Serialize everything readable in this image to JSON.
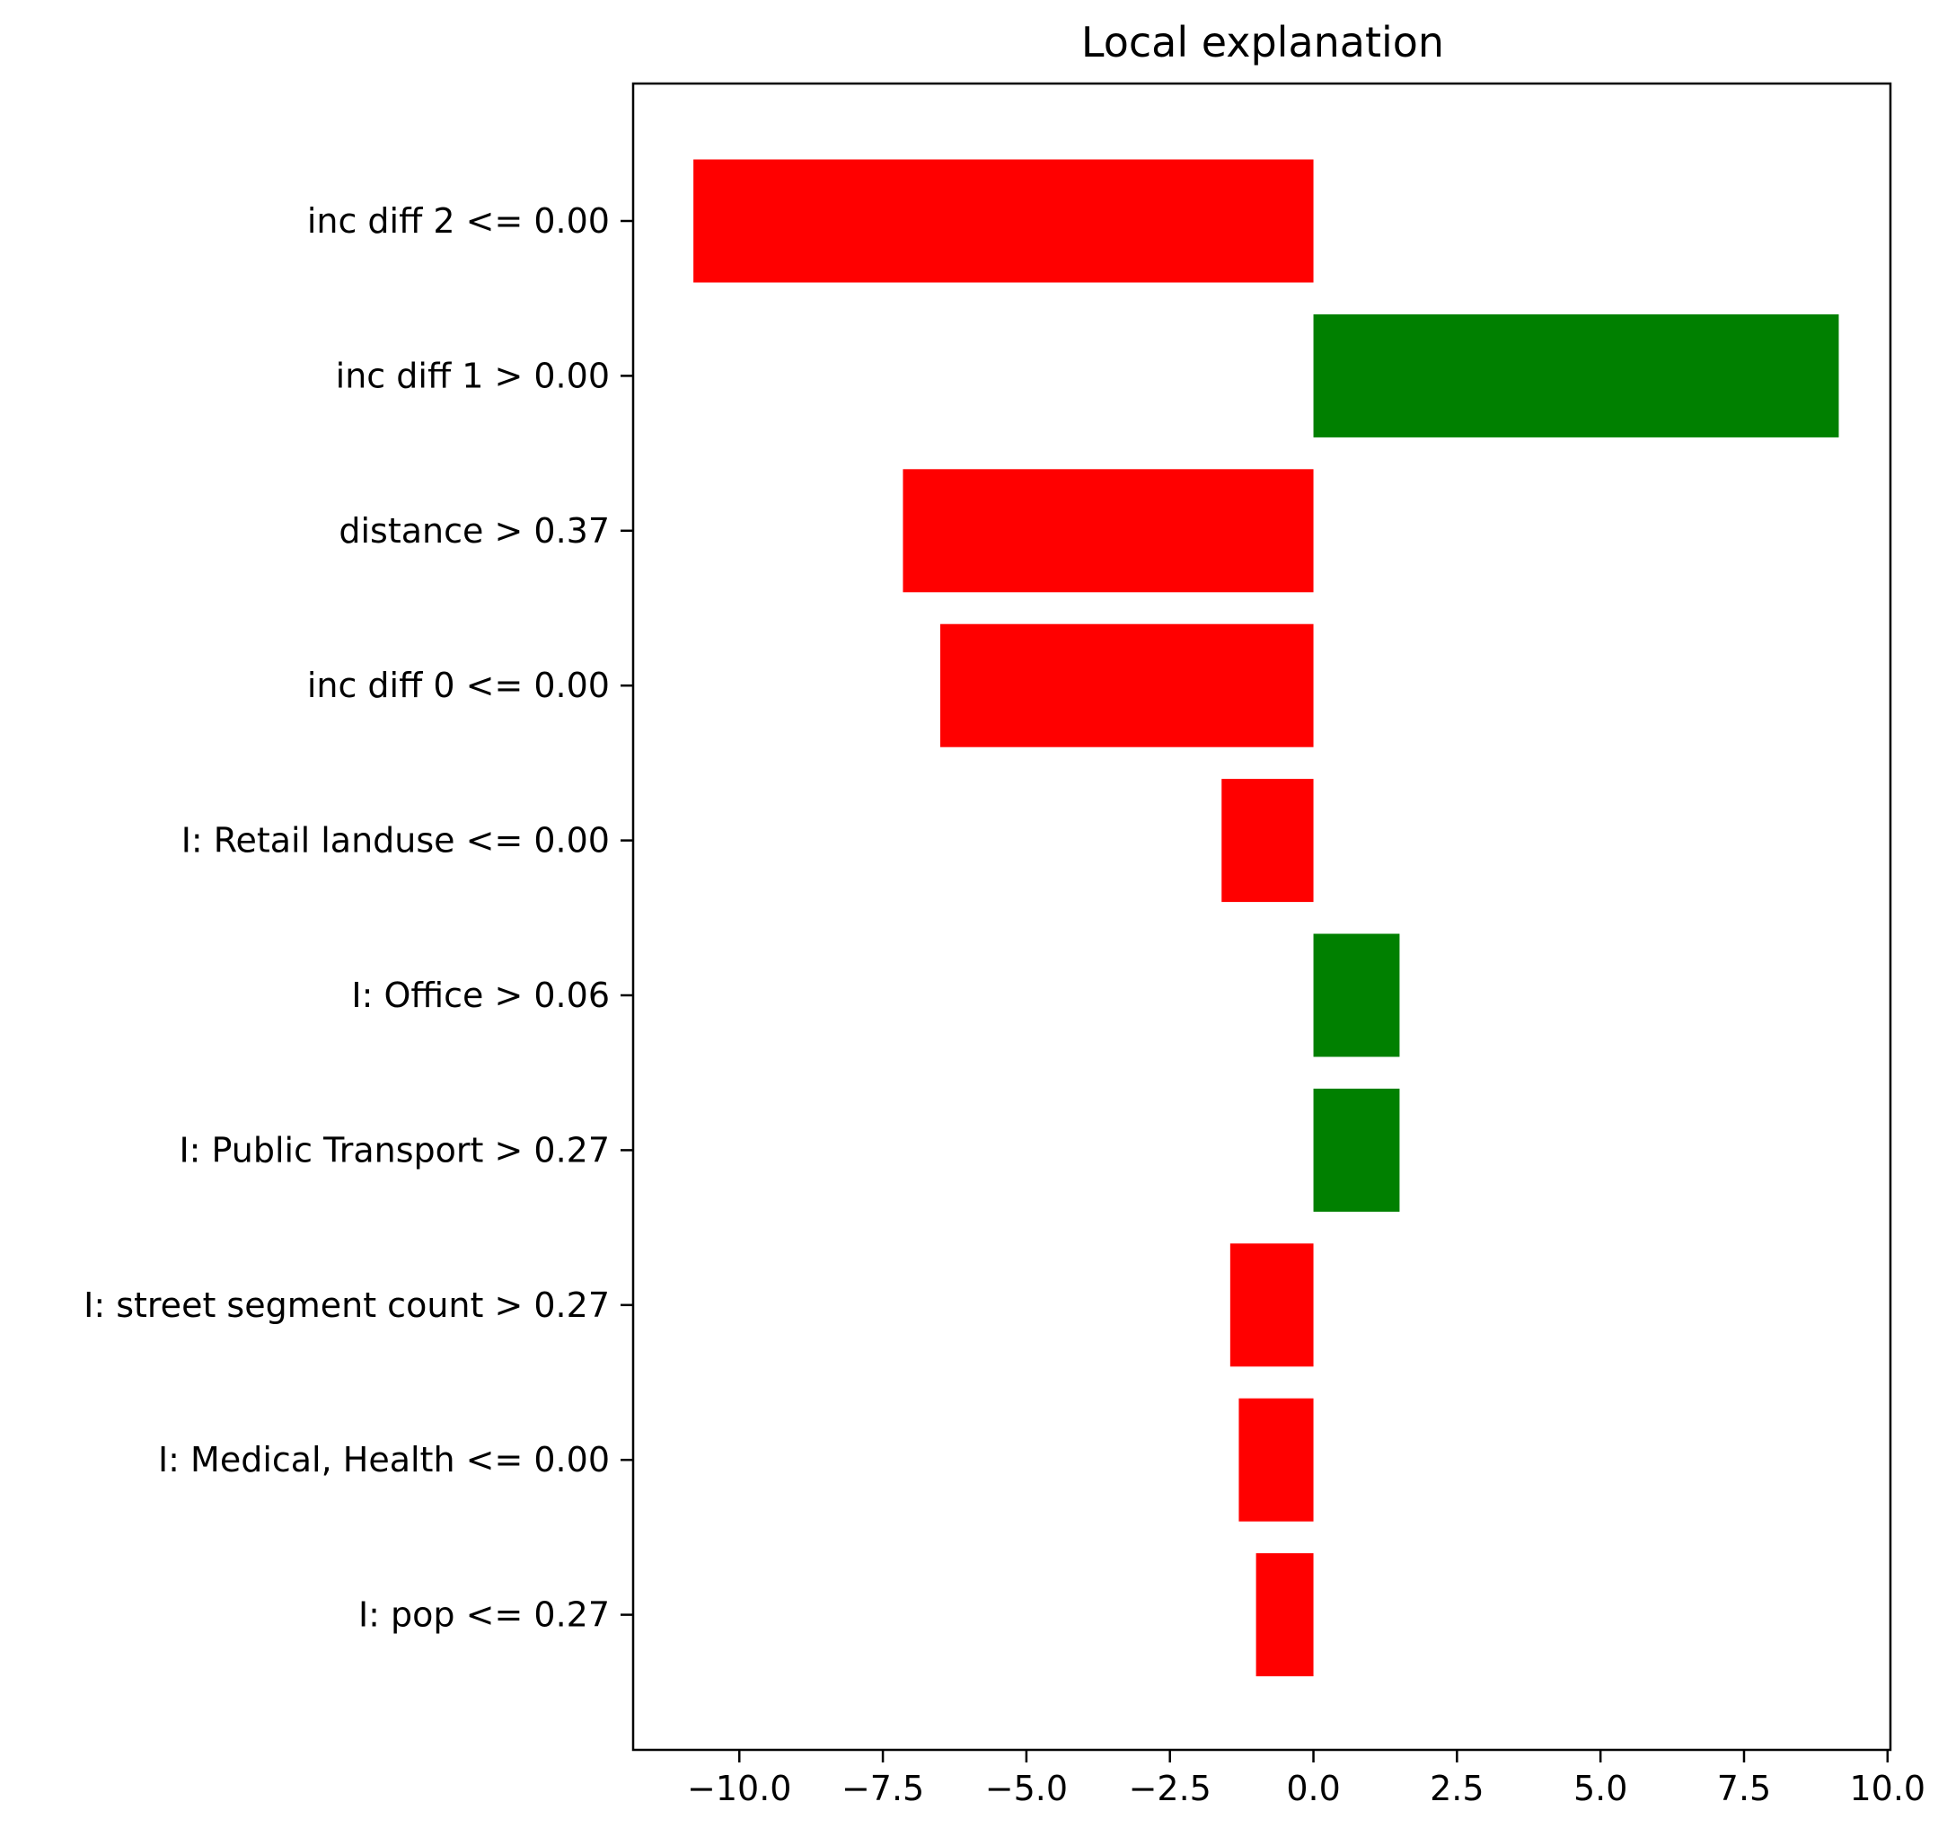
{
  "chart_data": {
    "type": "bar",
    "orientation": "horizontal",
    "title": "Local explanation",
    "xlabel": "",
    "ylabel": "",
    "xlim": [
      -11.85,
      10.05
    ],
    "xticks": [
      -10.0,
      -7.5,
      -5.0,
      -2.5,
      0.0,
      2.5,
      5.0,
      7.5,
      10.0
    ],
    "xtick_labels": [
      "−10.0",
      "−7.5",
      "−5.0",
      "−2.5",
      "0.0",
      "2.5",
      "5.0",
      "7.5",
      "10.0"
    ],
    "categories": [
      "inc diff 2 <= 0.00",
      "inc diff 1 > 0.00",
      "distance > 0.37",
      "inc diff 0 <= 0.00",
      "I: Retail landuse <= 0.00",
      "I: Office > 0.06",
      "I: Public Transport > 0.27",
      "I: street segment count > 0.27",
      "I: Medical, Health <= 0.00",
      "I: pop <= 0.27"
    ],
    "values": [
      -10.8,
      9.15,
      -7.15,
      -6.5,
      -1.6,
      1.5,
      1.5,
      -1.45,
      -1.3,
      -1.0
    ],
    "colors": {
      "positive": "#008000",
      "negative": "#ff0000"
    },
    "grid": false,
    "legend": "none"
  }
}
